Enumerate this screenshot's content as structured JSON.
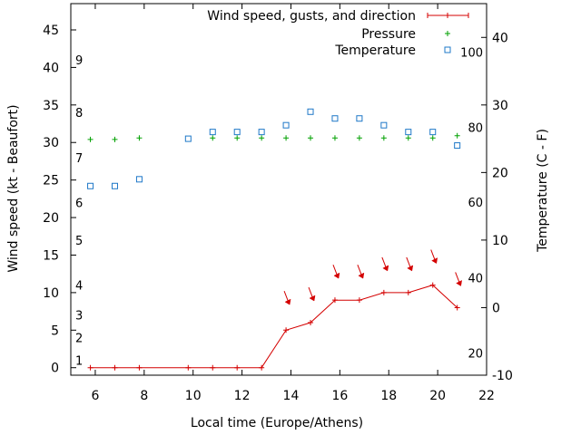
{
  "chart_data": {
    "type": "line",
    "xlabel": "Local time (Europe/Athens)",
    "ylabel": "Wind speed (kt - Beaufort)",
    "y2label": "Temperature (C - F)",
    "xlim": [
      5,
      22
    ],
    "ylim": [
      -1,
      48.5
    ],
    "y2lim": [
      -10,
      45
    ],
    "x_ticks": [
      6,
      8,
      10,
      12,
      14,
      16,
      18,
      20,
      22
    ],
    "y_ticks": [
      0,
      5,
      10,
      15,
      20,
      25,
      30,
      35,
      40,
      45
    ],
    "y2_ticks": [
      -10,
      0,
      10,
      20,
      30,
      40
    ],
    "beaufort_labels": [
      {
        "label": "1",
        "kt": 1
      },
      {
        "label": "2",
        "kt": 4
      },
      {
        "label": "3",
        "kt": 7
      },
      {
        "label": "4",
        "kt": 11
      },
      {
        "label": "5",
        "kt": 17
      },
      {
        "label": "6",
        "kt": 22
      },
      {
        "label": "7",
        "kt": 28
      },
      {
        "label": "8",
        "kt": 34
      },
      {
        "label": "9",
        "kt": 41
      }
    ],
    "fahrenheit_labels": [
      {
        "label": "20",
        "celsius": -6.7
      },
      {
        "label": "40",
        "celsius": 4.4
      },
      {
        "label": "60",
        "celsius": 15.6
      },
      {
        "label": "80",
        "celsius": 26.7
      },
      {
        "label": "100",
        "celsius": 37.8
      }
    ],
    "legend_position": "top-right",
    "series": [
      {
        "name": "Wind speed, gusts, and direction",
        "axis": "left",
        "color": "#d40000",
        "marker": "plus",
        "line": true,
        "x": [
          5.8,
          6.8,
          7.8,
          9.8,
          10.8,
          11.8,
          12.8,
          13.8,
          14.8,
          15.8,
          16.8,
          17.8,
          18.8,
          19.8,
          20.8
        ],
        "values": [
          0,
          0,
          0,
          0,
          0,
          0,
          0,
          5,
          6,
          9,
          9,
          10,
          10,
          11,
          8
        ],
        "direction_arrows": [
          {
            "x": 13.8,
            "y": 9
          },
          {
            "x": 14.8,
            "y": 9.5
          },
          {
            "x": 15.8,
            "y": 12.5
          },
          {
            "x": 16.8,
            "y": 12.5
          },
          {
            "x": 17.8,
            "y": 13.5
          },
          {
            "x": 18.8,
            "y": 13.5
          },
          {
            "x": 19.8,
            "y": 14.5
          },
          {
            "x": 20.8,
            "y": 11.5
          }
        ]
      },
      {
        "name": "Pressure",
        "axis": "left",
        "color": "#00a000",
        "marker": "plus",
        "line": false,
        "x": [
          5.8,
          6.8,
          7.8,
          10.8,
          11.8,
          12.8,
          13.8,
          14.8,
          15.8,
          16.8,
          17.8,
          18.8,
          19.8,
          20.8
        ],
        "values": [
          30.4,
          30.4,
          30.6,
          30.6,
          30.6,
          30.6,
          30.6,
          30.6,
          30.6,
          30.6,
          30.6,
          30.6,
          30.6,
          30.9
        ]
      },
      {
        "name": "Temperature",
        "axis": "right",
        "color": "#1e78c8",
        "marker": "square",
        "line": false,
        "x": [
          5.8,
          6.8,
          7.8,
          9.8,
          10.8,
          11.8,
          12.8,
          13.8,
          14.8,
          15.8,
          16.8,
          17.8,
          18.8,
          19.8,
          20.8
        ],
        "values": [
          18,
          18,
          19,
          25,
          26,
          26,
          26,
          27,
          29,
          28,
          28,
          27,
          26,
          26,
          24
        ]
      }
    ]
  }
}
